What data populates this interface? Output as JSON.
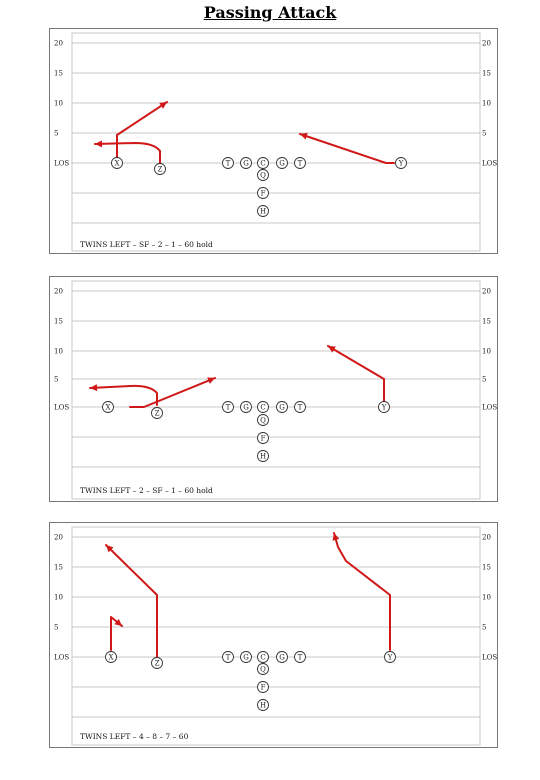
{
  "title": "Passing Attack",
  "yard_labels": [
    "20",
    "15",
    "10",
    "5",
    "LOS"
  ],
  "route_color": "#d01818",
  "formation": [
    {
      "id": "x",
      "label": "X"
    },
    {
      "id": "z",
      "label": "Z"
    },
    {
      "id": "lt",
      "label": "T"
    },
    {
      "id": "lg",
      "label": "G"
    },
    {
      "id": "c",
      "label": "C"
    },
    {
      "id": "rg",
      "label": "G"
    },
    {
      "id": "rt",
      "label": "T"
    },
    {
      "id": "y",
      "label": "Y"
    },
    {
      "id": "q",
      "label": "Q"
    },
    {
      "id": "f",
      "label": "F"
    },
    {
      "id": "h",
      "label": "H"
    }
  ],
  "plays": [
    {
      "call": "TWINS LEFT – SF – 2 – 1 – 60 hold"
    },
    {
      "call": "TWINS LEFT – 2 – SF – 1 – 60 hold"
    },
    {
      "call": "TWINS LEFT – 4 – 8 – 7 – 60"
    }
  ]
}
